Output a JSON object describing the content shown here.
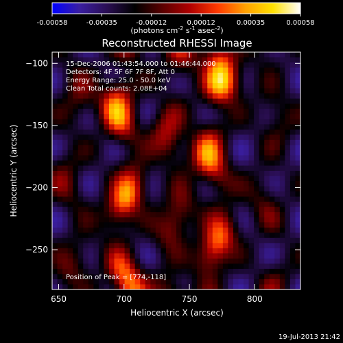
{
  "chart_data": {
    "type": "heatmap",
    "title": "Reconstructed RHESSI Image",
    "xlabel": "Heliocentric X (arcsec)",
    "ylabel": "Heliocentric Y (arcsec)",
    "xlim": [
      645,
      835
    ],
    "ylim": [
      -282,
      -91
    ],
    "xticks": [
      650,
      700,
      750,
      800
    ],
    "yticks": [
      -100,
      -150,
      -200,
      -250
    ],
    "colorbar": {
      "min": -0.00058,
      "max": 0.00058,
      "ticks": [
        "-0.00058",
        "-0.00035",
        "-0.00012",
        "0.00012",
        "0.00035",
        "0.00058"
      ],
      "unit_prefix": "(photons cm",
      "unit_exp1": "-2",
      "unit_mid": " s",
      "unit_exp2": "-1",
      "unit_mid2": " asec",
      "unit_exp3": "-2",
      "unit_suffix": ")",
      "colors": [
        "#0000ff",
        "#3a1ea0",
        "#2a0e52",
        "#000000",
        "#5a0000",
        "#b00000",
        "#ff3a00",
        "#ffa000",
        "#ffe000",
        "#ffffff"
      ]
    },
    "annotations": [
      "15-Dec-2006 01:43:54.000 to 01:46:44.000",
      "Detectors: 4F 5F 6F 7F 8F, Att 0",
      "Energy Range: 25.0 - 50.0 keV",
      "Clean     Total counts: 2.08E+04"
    ],
    "peak_label": "Position of Peak = [774,-118]",
    "peak": [
      774,
      -118
    ],
    "stripes": [
      {
        "x": 700,
        "amp": 0.95
      },
      {
        "x": 738,
        "amp": 0.55
      },
      {
        "x": 770,
        "amp": 0.9
      },
      {
        "x": 660,
        "amp": 0.35
      },
      {
        "x": 812,
        "amp": 0.3
      }
    ]
  },
  "footer": {
    "timestamp": "19-Jul-2013 21:42"
  }
}
